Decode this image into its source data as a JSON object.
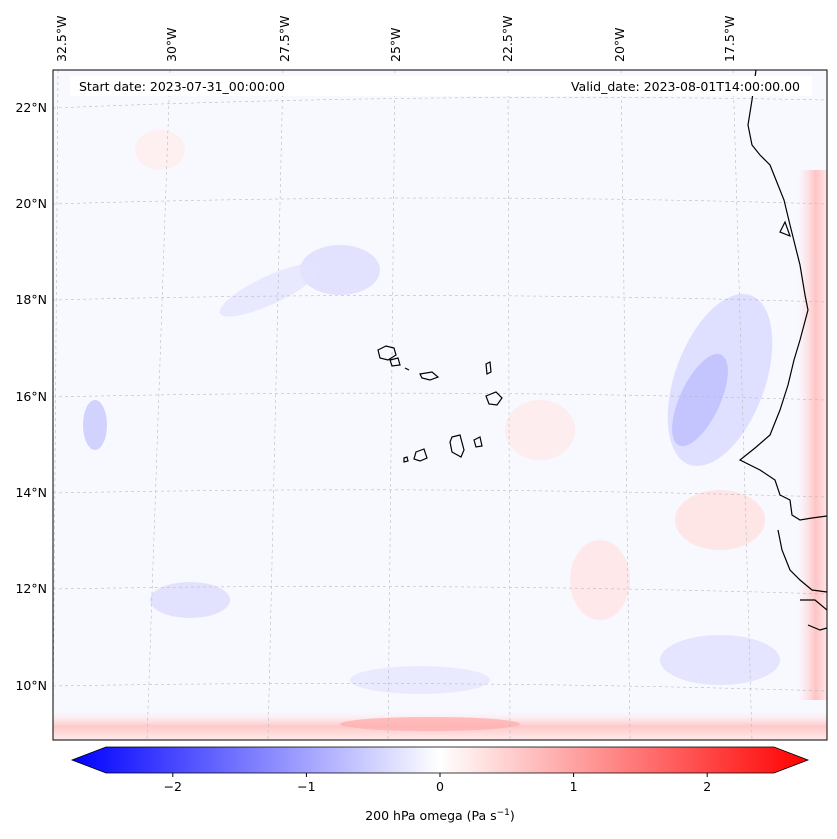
{
  "map": {
    "start_date": "Start date: 2023-07-31_00:00:00",
    "valid_date": "Valid_date: 2023-08-01T14:00:00.00",
    "lon_labels": [
      "32.5°W",
      "30°W",
      "27.5°W",
      "25°W",
      "22.5°W",
      "20°W",
      "17.5°W"
    ],
    "lat_labels": [
      "22°N",
      "20°N",
      "18°N",
      "16°N",
      "14°N",
      "12°N",
      "10°N"
    ]
  },
  "colorbar": {
    "ticks": [
      "−2",
      "−1",
      "0",
      "1",
      "2"
    ],
    "tick_values": [
      -2,
      -1,
      0,
      1,
      2
    ],
    "range": [
      -2.5,
      2.5
    ],
    "label": "200 hPa omega (Pa s",
    "label_exp": "−1",
    "label_close": ")"
  },
  "colors": {
    "negative": "#0000ff",
    "zero": "#ffffff",
    "positive": "#ff0000",
    "coast": "#000000"
  }
}
